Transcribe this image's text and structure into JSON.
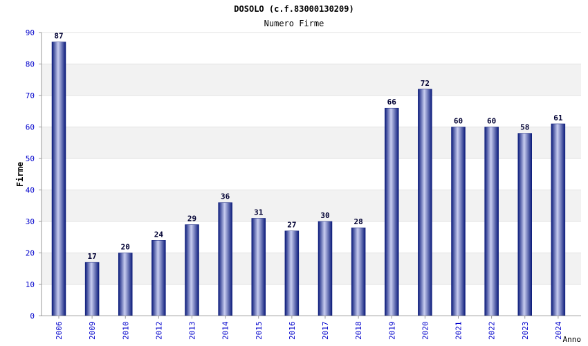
{
  "chart_data": {
    "type": "bar",
    "title": "DOSOLO (c.f.83000130209)",
    "subtitle": "Numero Firme",
    "xlabel": "Anno",
    "ylabel": "Firme",
    "ylim": [
      0,
      90
    ],
    "yticks": [
      0,
      10,
      20,
      30,
      40,
      50,
      60,
      70,
      80,
      90
    ],
    "categories": [
      "2006",
      "2009",
      "2010",
      "2012",
      "2013",
      "2014",
      "2015",
      "2016",
      "2017",
      "2018",
      "2019",
      "2020",
      "2021",
      "2022",
      "2023",
      "2024"
    ],
    "values": [
      87,
      17,
      20,
      24,
      29,
      36,
      31,
      27,
      30,
      28,
      66,
      72,
      60,
      60,
      58,
      61
    ],
    "grid": "horizontal-bands",
    "legend": "none",
    "colors": {
      "bar_dark": "#0a1a7a",
      "bar_light": "#c8cdf0",
      "band": "#f2f2f2",
      "tick_label": "#0000cc",
      "data_label": "#000033"
    }
  }
}
